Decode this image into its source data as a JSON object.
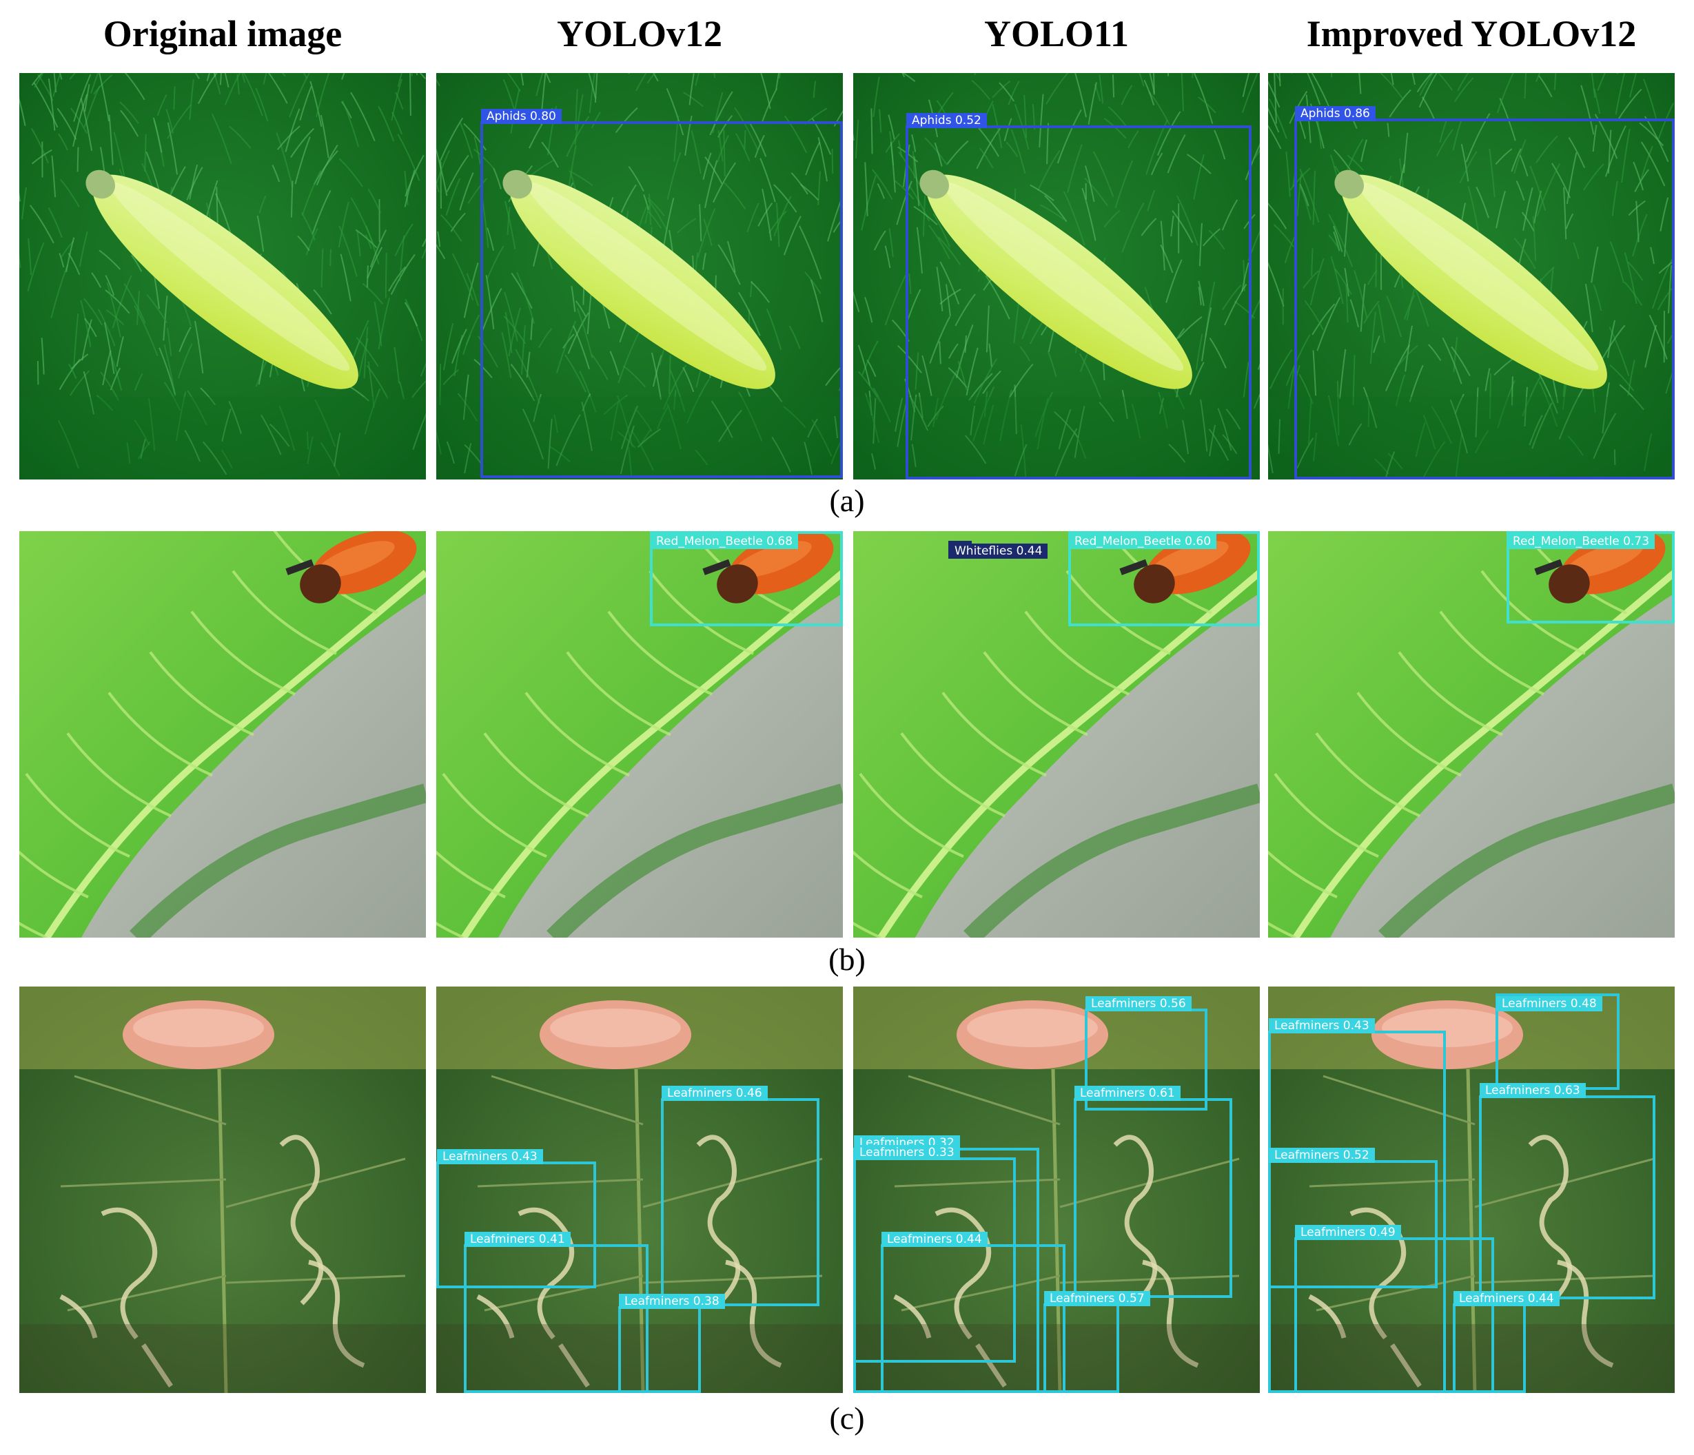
{
  "headers": [
    "Original image",
    "YOLOv12",
    "YOLO11",
    "Improved YOLOv12"
  ],
  "captions": [
    "(a)",
    "(b)",
    "(c)"
  ],
  "colors": {
    "aphids_box": "#2f4fd0",
    "aphids_label_bg": "#2f54e6",
    "beetle_box": "#3fe0d0",
    "whiteflies_box": "#1a2a6c",
    "leafminer_box": "#2ec7d7",
    "leafminer_label_bg": "#38d4e2"
  },
  "rows": [
    {
      "scene": "caterpillar",
      "panels": [
        {
          "detections": []
        },
        {
          "detections": [
            {
              "label": "Aphids 0.80",
              "kind": "aphids"
            }
          ]
        },
        {
          "detections": [
            {
              "label": "Aphids 0.52",
              "kind": "aphids"
            }
          ]
        },
        {
          "detections": [
            {
              "label": "Aphids 0.86",
              "kind": "aphids"
            }
          ]
        }
      ]
    },
    {
      "scene": "leaf-beetle",
      "panels": [
        {
          "detections": []
        },
        {
          "detections": [
            {
              "label": "Red_Melon_Beetle 0.68",
              "kind": "beetle"
            }
          ]
        },
        {
          "detections": [
            {
              "label": "Whiteflies 0.44",
              "kind": "whiteflies"
            },
            {
              "label": "Red_Melon_Beetle 0.60",
              "kind": "beetle"
            }
          ]
        },
        {
          "detections": [
            {
              "label": "Red_Melon_Beetle 0.73",
              "kind": "beetle"
            }
          ]
        }
      ]
    },
    {
      "scene": "leafminers",
      "panels": [
        {
          "detections": []
        },
        {
          "detections": [
            {
              "label": "Leafminers 0.46",
              "kind": "leafminer"
            },
            {
              "label": "Leafminers 0.43",
              "kind": "leafminer"
            },
            {
              "label": "Leafminers 0.41",
              "kind": "leafminer"
            },
            {
              "label": "Leafminers 0.38",
              "kind": "leafminer"
            }
          ]
        },
        {
          "detections": [
            {
              "label": "Leafminers 0.56",
              "kind": "leafminer"
            },
            {
              "label": "Leafminers 0.61",
              "kind": "leafminer"
            },
            {
              "label": "Leafminers 0.32",
              "kind": "leafminer"
            },
            {
              "label": "Leafminers 0.33",
              "kind": "leafminer"
            },
            {
              "label": "Leafminers 0.44",
              "kind": "leafminer"
            },
            {
              "label": "Leafminers 0.57",
              "kind": "leafminer"
            }
          ]
        },
        {
          "detections": [
            {
              "label": "Leafminers 0.48",
              "kind": "leafminer"
            },
            {
              "label": "Leafminers 0.43",
              "kind": "leafminer"
            },
            {
              "label": "Leafminers 0.63",
              "kind": "leafminer"
            },
            {
              "label": "Leafminers 0.52",
              "kind": "leafminer"
            },
            {
              "label": "Leafminers 0.49",
              "kind": "leafminer"
            },
            {
              "label": "Leafminers 0.44",
              "kind": "leafminer"
            }
          ]
        }
      ]
    }
  ]
}
